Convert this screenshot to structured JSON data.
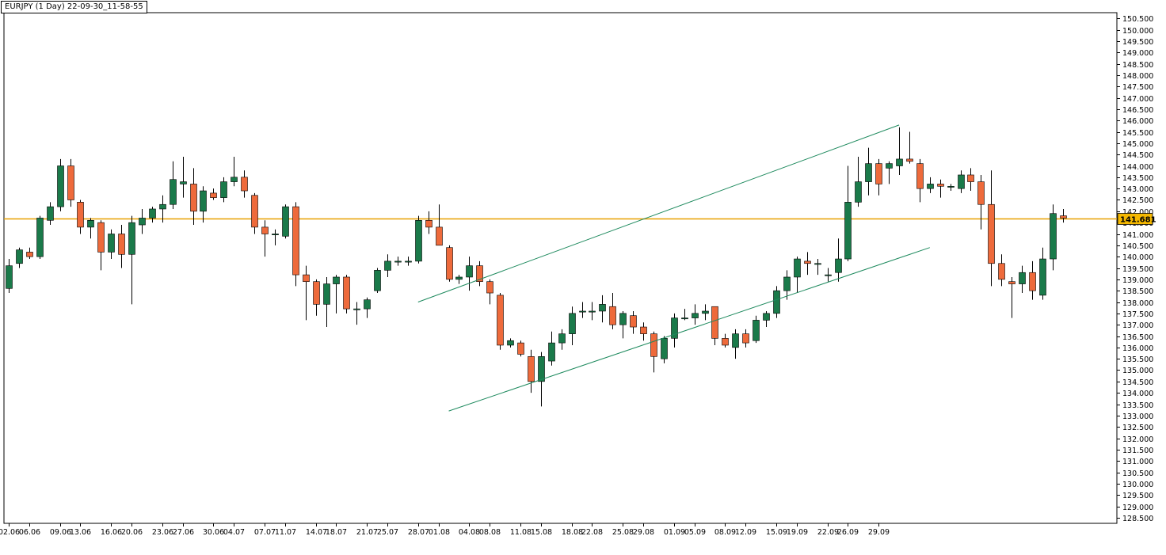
{
  "colors": {
    "up_candle": "#1a7a4a",
    "down_candle": "#ee6a3b",
    "wick": "#000000",
    "price_line": "#e8a000",
    "price_label_bg": "#f5b800",
    "channel_lines": "#1e8a5e",
    "background": "#ffffff",
    "axis": "#000000"
  },
  "chart_data": {
    "type": "candlestick",
    "title": "EURJPY (1 Day) 22-09-30_11-58-55",
    "symbol": "EURJPY",
    "timeframe": "1 Day",
    "current_price_label": "141.681",
    "current_price": 141.681,
    "ylim": [
      128.25,
      150.75
    ],
    "y_ticks": [
      "150.500",
      "150.000",
      "149.500",
      "149.000",
      "148.500",
      "148.000",
      "147.500",
      "147.000",
      "146.500",
      "146.000",
      "145.500",
      "145.000",
      "144.500",
      "144.000",
      "143.500",
      "143.000",
      "142.500",
      "142.000",
      "141.500",
      "141.000",
      "140.500",
      "140.000",
      "139.500",
      "139.000",
      "138.500",
      "138.000",
      "137.500",
      "137.000",
      "136.500",
      "136.000",
      "135.500",
      "135.000",
      "134.500",
      "134.000",
      "133.500",
      "133.000",
      "132.500",
      "132.000",
      "131.500",
      "131.000",
      "130.500",
      "130.000",
      "129.500",
      "129.000",
      "128.500"
    ],
    "x_ticks": [
      {
        "label": "02.06",
        "index": 0
      },
      {
        "label": "06.06",
        "index": 2
      },
      {
        "label": "09.06",
        "index": 5
      },
      {
        "label": "13.06",
        "index": 7
      },
      {
        "label": "16.06",
        "index": 10
      },
      {
        "label": "20.06",
        "index": 12
      },
      {
        "label": "23.06",
        "index": 15
      },
      {
        "label": "27.06",
        "index": 17
      },
      {
        "label": "30.06",
        "index": 20
      },
      {
        "label": "04.07",
        "index": 22
      },
      {
        "label": "07.07",
        "index": 25
      },
      {
        "label": "11.07",
        "index": 27
      },
      {
        "label": "14.07",
        "index": 30
      },
      {
        "label": "18.07",
        "index": 32
      },
      {
        "label": "21.07",
        "index": 35
      },
      {
        "label": "25.07",
        "index": 37
      },
      {
        "label": "28.07",
        "index": 40
      },
      {
        "label": "01.08",
        "index": 42
      },
      {
        "label": "04.08",
        "index": 45
      },
      {
        "label": "08.08",
        "index": 47
      },
      {
        "label": "11.08",
        "index": 50
      },
      {
        "label": "15.08",
        "index": 52
      },
      {
        "label": "18.08",
        "index": 55
      },
      {
        "label": "22.08",
        "index": 57
      },
      {
        "label": "25.08",
        "index": 60
      },
      {
        "label": "29.08",
        "index": 62
      },
      {
        "label": "01.09",
        "index": 65
      },
      {
        "label": "05.09",
        "index": 67
      },
      {
        "label": "08.09",
        "index": 70
      },
      {
        "label": "12.09",
        "index": 72
      },
      {
        "label": "15.09",
        "index": 75
      },
      {
        "label": "19.09",
        "index": 77
      },
      {
        "label": "22.09",
        "index": 80
      },
      {
        "label": "26.09",
        "index": 82
      },
      {
        "label": "29.09",
        "index": 85
      }
    ],
    "candles": [
      {
        "o": 138.6,
        "h": 139.9,
        "l": 138.4,
        "c": 139.6
      },
      {
        "o": 139.7,
        "h": 140.4,
        "l": 139.5,
        "c": 140.3
      },
      {
        "o": 140.2,
        "h": 140.4,
        "l": 139.9,
        "c": 140.0
      },
      {
        "o": 140.0,
        "h": 141.8,
        "l": 139.9,
        "c": 141.7
      },
      {
        "o": 141.6,
        "h": 142.4,
        "l": 141.4,
        "c": 142.2
      },
      {
        "o": 142.2,
        "h": 144.3,
        "l": 142.0,
        "c": 144.0
      },
      {
        "o": 144.0,
        "h": 144.3,
        "l": 142.2,
        "c": 142.5
      },
      {
        "o": 142.4,
        "h": 142.5,
        "l": 141.0,
        "c": 141.3
      },
      {
        "o": 141.3,
        "h": 141.7,
        "l": 140.8,
        "c": 141.6
      },
      {
        "o": 141.5,
        "h": 141.6,
        "l": 139.4,
        "c": 140.2
      },
      {
        "o": 140.2,
        "h": 141.2,
        "l": 139.9,
        "c": 141.0
      },
      {
        "o": 141.0,
        "h": 141.4,
        "l": 139.5,
        "c": 140.1
      },
      {
        "o": 140.1,
        "h": 141.8,
        "l": 137.9,
        "c": 141.5
      },
      {
        "o": 141.4,
        "h": 142.1,
        "l": 141.0,
        "c": 141.7
      },
      {
        "o": 141.7,
        "h": 142.2,
        "l": 141.5,
        "c": 142.1
      },
      {
        "o": 142.1,
        "h": 142.7,
        "l": 141.5,
        "c": 142.3
      },
      {
        "o": 142.3,
        "h": 144.2,
        "l": 142.1,
        "c": 143.4
      },
      {
        "o": 143.2,
        "h": 144.4,
        "l": 142.6,
        "c": 143.3
      },
      {
        "o": 143.2,
        "h": 143.9,
        "l": 141.4,
        "c": 142.0
      },
      {
        "o": 142.0,
        "h": 143.1,
        "l": 141.5,
        "c": 142.9
      },
      {
        "o": 142.8,
        "h": 143.0,
        "l": 142.5,
        "c": 142.6
      },
      {
        "o": 142.6,
        "h": 143.5,
        "l": 142.4,
        "c": 143.3
      },
      {
        "o": 143.3,
        "h": 144.4,
        "l": 143.1,
        "c": 143.5
      },
      {
        "o": 143.5,
        "h": 143.8,
        "l": 142.6,
        "c": 142.9
      },
      {
        "o": 142.7,
        "h": 142.8,
        "l": 141.0,
        "c": 141.3
      },
      {
        "o": 141.3,
        "h": 141.6,
        "l": 140.0,
        "c": 141.0
      },
      {
        "o": 141.0,
        "h": 141.2,
        "l": 140.5,
        "c": 141.0
      },
      {
        "o": 140.9,
        "h": 142.3,
        "l": 140.8,
        "c": 142.2
      },
      {
        "o": 142.2,
        "h": 142.4,
        "l": 138.7,
        "c": 139.2
      },
      {
        "o": 139.2,
        "h": 139.6,
        "l": 137.2,
        "c": 138.9
      },
      {
        "o": 138.9,
        "h": 139.0,
        "l": 137.4,
        "c": 137.9
      },
      {
        "o": 137.9,
        "h": 139.1,
        "l": 136.9,
        "c": 138.8
      },
      {
        "o": 138.8,
        "h": 139.2,
        "l": 137.5,
        "c": 139.1
      },
      {
        "o": 139.1,
        "h": 139.2,
        "l": 137.5,
        "c": 137.7
      },
      {
        "o": 137.7,
        "h": 138.0,
        "l": 137.0,
        "c": 137.7
      },
      {
        "o": 137.7,
        "h": 138.2,
        "l": 137.3,
        "c": 138.1
      },
      {
        "o": 138.5,
        "h": 139.5,
        "l": 138.4,
        "c": 139.4
      },
      {
        "o": 139.4,
        "h": 140.1,
        "l": 139.1,
        "c": 139.8
      },
      {
        "o": 139.8,
        "h": 140.0,
        "l": 139.6,
        "c": 139.8
      },
      {
        "o": 139.8,
        "h": 140.0,
        "l": 139.6,
        "c": 139.8
      },
      {
        "o": 139.8,
        "h": 141.8,
        "l": 139.7,
        "c": 141.6
      },
      {
        "o": 141.6,
        "h": 142.0,
        "l": 141.0,
        "c": 141.3
      },
      {
        "o": 141.3,
        "h": 142.3,
        "l": 140.5,
        "c": 140.5
      },
      {
        "o": 140.4,
        "h": 140.5,
        "l": 138.9,
        "c": 139.0
      },
      {
        "o": 139.0,
        "h": 139.2,
        "l": 138.8,
        "c": 139.1
      },
      {
        "o": 139.1,
        "h": 140.0,
        "l": 138.5,
        "c": 139.6
      },
      {
        "o": 139.6,
        "h": 139.8,
        "l": 138.7,
        "c": 138.9
      },
      {
        "o": 138.9,
        "h": 139.0,
        "l": 137.9,
        "c": 138.4
      },
      {
        "o": 138.3,
        "h": 138.4,
        "l": 135.9,
        "c": 136.1
      },
      {
        "o": 136.1,
        "h": 136.4,
        "l": 136.0,
        "c": 136.3
      },
      {
        "o": 136.2,
        "h": 136.3,
        "l": 135.6,
        "c": 135.7
      },
      {
        "o": 135.6,
        "h": 135.9,
        "l": 134.0,
        "c": 134.5
      },
      {
        "o": 134.5,
        "h": 135.8,
        "l": 133.4,
        "c": 135.6
      },
      {
        "o": 135.4,
        "h": 136.7,
        "l": 135.2,
        "c": 136.2
      },
      {
        "o": 136.2,
        "h": 136.8,
        "l": 135.9,
        "c": 136.6
      },
      {
        "o": 136.6,
        "h": 137.8,
        "l": 136.1,
        "c": 137.5
      },
      {
        "o": 137.6,
        "h": 138.0,
        "l": 137.3,
        "c": 137.6
      },
      {
        "o": 137.6,
        "h": 138.0,
        "l": 137.2,
        "c": 137.6
      },
      {
        "o": 137.6,
        "h": 138.3,
        "l": 137.1,
        "c": 137.9
      },
      {
        "o": 137.8,
        "h": 138.4,
        "l": 136.8,
        "c": 137.0
      },
      {
        "o": 137.0,
        "h": 137.6,
        "l": 136.4,
        "c": 137.5
      },
      {
        "o": 137.4,
        "h": 137.6,
        "l": 136.6,
        "c": 136.9
      },
      {
        "o": 136.9,
        "h": 137.1,
        "l": 136.3,
        "c": 136.6
      },
      {
        "o": 136.6,
        "h": 136.7,
        "l": 134.9,
        "c": 135.6
      },
      {
        "o": 135.5,
        "h": 136.5,
        "l": 135.3,
        "c": 136.4
      },
      {
        "o": 136.4,
        "h": 137.5,
        "l": 136.0,
        "c": 137.3
      },
      {
        "o": 137.3,
        "h": 137.7,
        "l": 137.2,
        "c": 137.3
      },
      {
        "o": 137.3,
        "h": 137.9,
        "l": 137.0,
        "c": 137.5
      },
      {
        "o": 137.5,
        "h": 137.9,
        "l": 137.2,
        "c": 137.6
      },
      {
        "o": 137.8,
        "h": 137.8,
        "l": 136.1,
        "c": 136.4
      },
      {
        "o": 136.4,
        "h": 136.6,
        "l": 136.0,
        "c": 136.1
      },
      {
        "o": 136.0,
        "h": 136.8,
        "l": 135.5,
        "c": 136.6
      },
      {
        "o": 136.6,
        "h": 136.8,
        "l": 136.0,
        "c": 136.2
      },
      {
        "o": 136.3,
        "h": 137.4,
        "l": 136.2,
        "c": 137.2
      },
      {
        "o": 137.2,
        "h": 137.6,
        "l": 136.9,
        "c": 137.5
      },
      {
        "o": 137.5,
        "h": 138.7,
        "l": 137.3,
        "c": 138.5
      },
      {
        "o": 138.5,
        "h": 139.4,
        "l": 138.1,
        "c": 139.1
      },
      {
        "o": 139.1,
        "h": 140.0,
        "l": 138.4,
        "c": 139.9
      },
      {
        "o": 139.8,
        "h": 140.2,
        "l": 139.2,
        "c": 139.7
      },
      {
        "o": 139.7,
        "h": 139.9,
        "l": 139.2,
        "c": 139.7
      },
      {
        "o": 139.2,
        "h": 139.5,
        "l": 138.9,
        "c": 139.2
      },
      {
        "o": 139.3,
        "h": 140.8,
        "l": 138.9,
        "c": 139.9
      },
      {
        "o": 139.9,
        "h": 144.0,
        "l": 139.8,
        "c": 142.4
      },
      {
        "o": 142.4,
        "h": 144.4,
        "l": 142.2,
        "c": 143.3
      },
      {
        "o": 143.3,
        "h": 144.8,
        "l": 142.7,
        "c": 144.1
      },
      {
        "o": 144.1,
        "h": 144.3,
        "l": 142.7,
        "c": 143.2
      },
      {
        "o": 143.9,
        "h": 144.2,
        "l": 143.2,
        "c": 144.1
      },
      {
        "o": 144.0,
        "h": 145.7,
        "l": 143.6,
        "c": 144.3
      },
      {
        "o": 144.3,
        "h": 145.5,
        "l": 144.1,
        "c": 144.2
      },
      {
        "o": 144.1,
        "h": 144.3,
        "l": 142.4,
        "c": 143.0
      },
      {
        "o": 143.0,
        "h": 143.5,
        "l": 142.8,
        "c": 143.2
      },
      {
        "o": 143.2,
        "h": 143.4,
        "l": 142.6,
        "c": 143.1
      },
      {
        "o": 143.1,
        "h": 143.2,
        "l": 142.9,
        "c": 143.1
      },
      {
        "o": 143.0,
        "h": 143.8,
        "l": 142.8,
        "c": 143.6
      },
      {
        "o": 143.6,
        "h": 143.9,
        "l": 142.9,
        "c": 143.3
      },
      {
        "o": 143.3,
        "h": 143.6,
        "l": 141.2,
        "c": 142.3
      },
      {
        "o": 142.3,
        "h": 143.8,
        "l": 138.7,
        "c": 139.7
      },
      {
        "o": 139.7,
        "h": 140.1,
        "l": 138.7,
        "c": 139.0
      },
      {
        "o": 138.9,
        "h": 139.1,
        "l": 137.3,
        "c": 138.8
      },
      {
        "o": 138.8,
        "h": 139.6,
        "l": 138.4,
        "c": 139.3
      },
      {
        "o": 139.3,
        "h": 139.8,
        "l": 138.1,
        "c": 138.5
      },
      {
        "o": 138.3,
        "h": 140.4,
        "l": 138.1,
        "c": 139.9
      },
      {
        "o": 139.9,
        "h": 142.3,
        "l": 139.4,
        "c": 141.9
      },
      {
        "o": 141.8,
        "h": 142.1,
        "l": 141.5,
        "c": 141.7
      }
    ],
    "trend_lines": [
      {
        "name": "upper-channel",
        "from": {
          "index": 40,
          "value": 138.0
        },
        "to": {
          "index": 87,
          "value": 145.8
        }
      },
      {
        "name": "lower-channel",
        "from": {
          "index": 43,
          "value": 133.2
        },
        "to": {
          "index": 90,
          "value": 140.4
        }
      }
    ]
  }
}
